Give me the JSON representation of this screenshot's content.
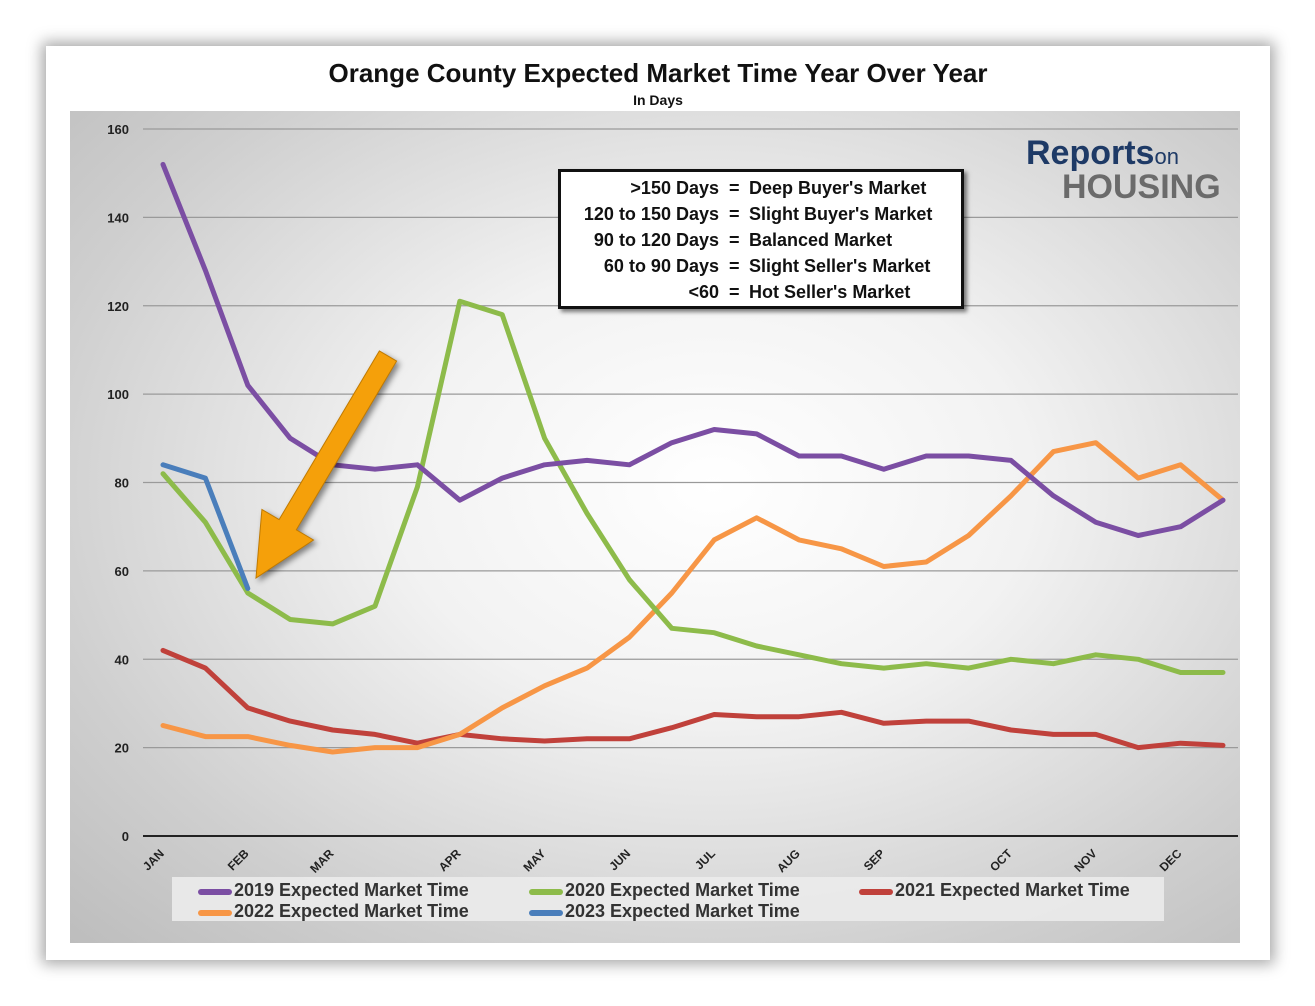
{
  "chart_data": {
    "type": "line",
    "title": "Orange County Expected Market Time Year Over Year",
    "subtitle": "In Days",
    "x_points": 26,
    "x_tick_labels": [
      {
        "label": "JAN",
        "index": 0
      },
      {
        "label": "FEB",
        "index": 2
      },
      {
        "label": "MAR",
        "index": 4
      },
      {
        "label": "APR",
        "index": 7
      },
      {
        "label": "MAY",
        "index": 9
      },
      {
        "label": "JUN",
        "index": 11
      },
      {
        "label": "JUL",
        "index": 13
      },
      {
        "label": "AUG",
        "index": 15
      },
      {
        "label": "SEP",
        "index": 17
      },
      {
        "label": "OCT",
        "index": 20
      },
      {
        "label": "NOV",
        "index": 22
      },
      {
        "label": "DEC",
        "index": 24
      }
    ],
    "ylim": [
      0,
      160
    ],
    "y_ticks": [
      0,
      20,
      40,
      60,
      80,
      100,
      120,
      140,
      160
    ],
    "grid": "horizontal",
    "legend_position": "bottom",
    "series": [
      {
        "name": "2019 Expected Market Time",
        "color": "#7b4ea3",
        "values": [
          152,
          128,
          102,
          90,
          84,
          83,
          84,
          76,
          81,
          84,
          85,
          84,
          89,
          92,
          91,
          86,
          86,
          83,
          86,
          86,
          85,
          77,
          71,
          68,
          70,
          76
        ]
      },
      {
        "name": "2020 Expected Market Time",
        "color": "#8dbb4a",
        "values": [
          82,
          71,
          55,
          49,
          48,
          52,
          79,
          121,
          118,
          90,
          73,
          58,
          47,
          46,
          43,
          41,
          39,
          38,
          39,
          38,
          40,
          39,
          41,
          40,
          37,
          37
        ]
      },
      {
        "name": "2021 Expected Market Time",
        "color": "#c0413b",
        "values": [
          42,
          38,
          29,
          26,
          24,
          23,
          21,
          23,
          22,
          21.5,
          22,
          22,
          24.5,
          27.5,
          27,
          27,
          28,
          25.5,
          26,
          26,
          24,
          23,
          23,
          20,
          21,
          20.5
        ]
      },
      {
        "name": "2022 Expected Market Time",
        "color": "#f79646",
        "values": [
          25,
          22.5,
          22.5,
          20.5,
          19,
          20,
          20,
          23,
          29,
          34,
          38,
          45,
          55,
          67,
          72,
          67,
          65,
          61,
          62,
          68,
          77,
          87,
          89,
          81,
          84,
          76
        ]
      },
      {
        "name": "2023 Expected Market Time",
        "color": "#4a7ebb",
        "values": [
          84,
          81,
          56
        ]
      }
    ]
  },
  "key_box": [
    {
      "range": ">150 Days",
      "label": "Deep Buyer's Market"
    },
    {
      "range": "120 to 150 Days",
      "label": "Slight Buyer's Market"
    },
    {
      "range": "90 to 120 Days",
      "label": "Balanced Market"
    },
    {
      "range": "60 to 90 Days",
      "label": "Slight Seller's Market"
    },
    {
      "range": "<60",
      "label": "Hot Seller's Market"
    }
  ],
  "key_separator": "=",
  "logo": {
    "part1": "Reports",
    "part2": "on",
    "part3": "HOUSING"
  },
  "arrow_color": "#f5a00a"
}
